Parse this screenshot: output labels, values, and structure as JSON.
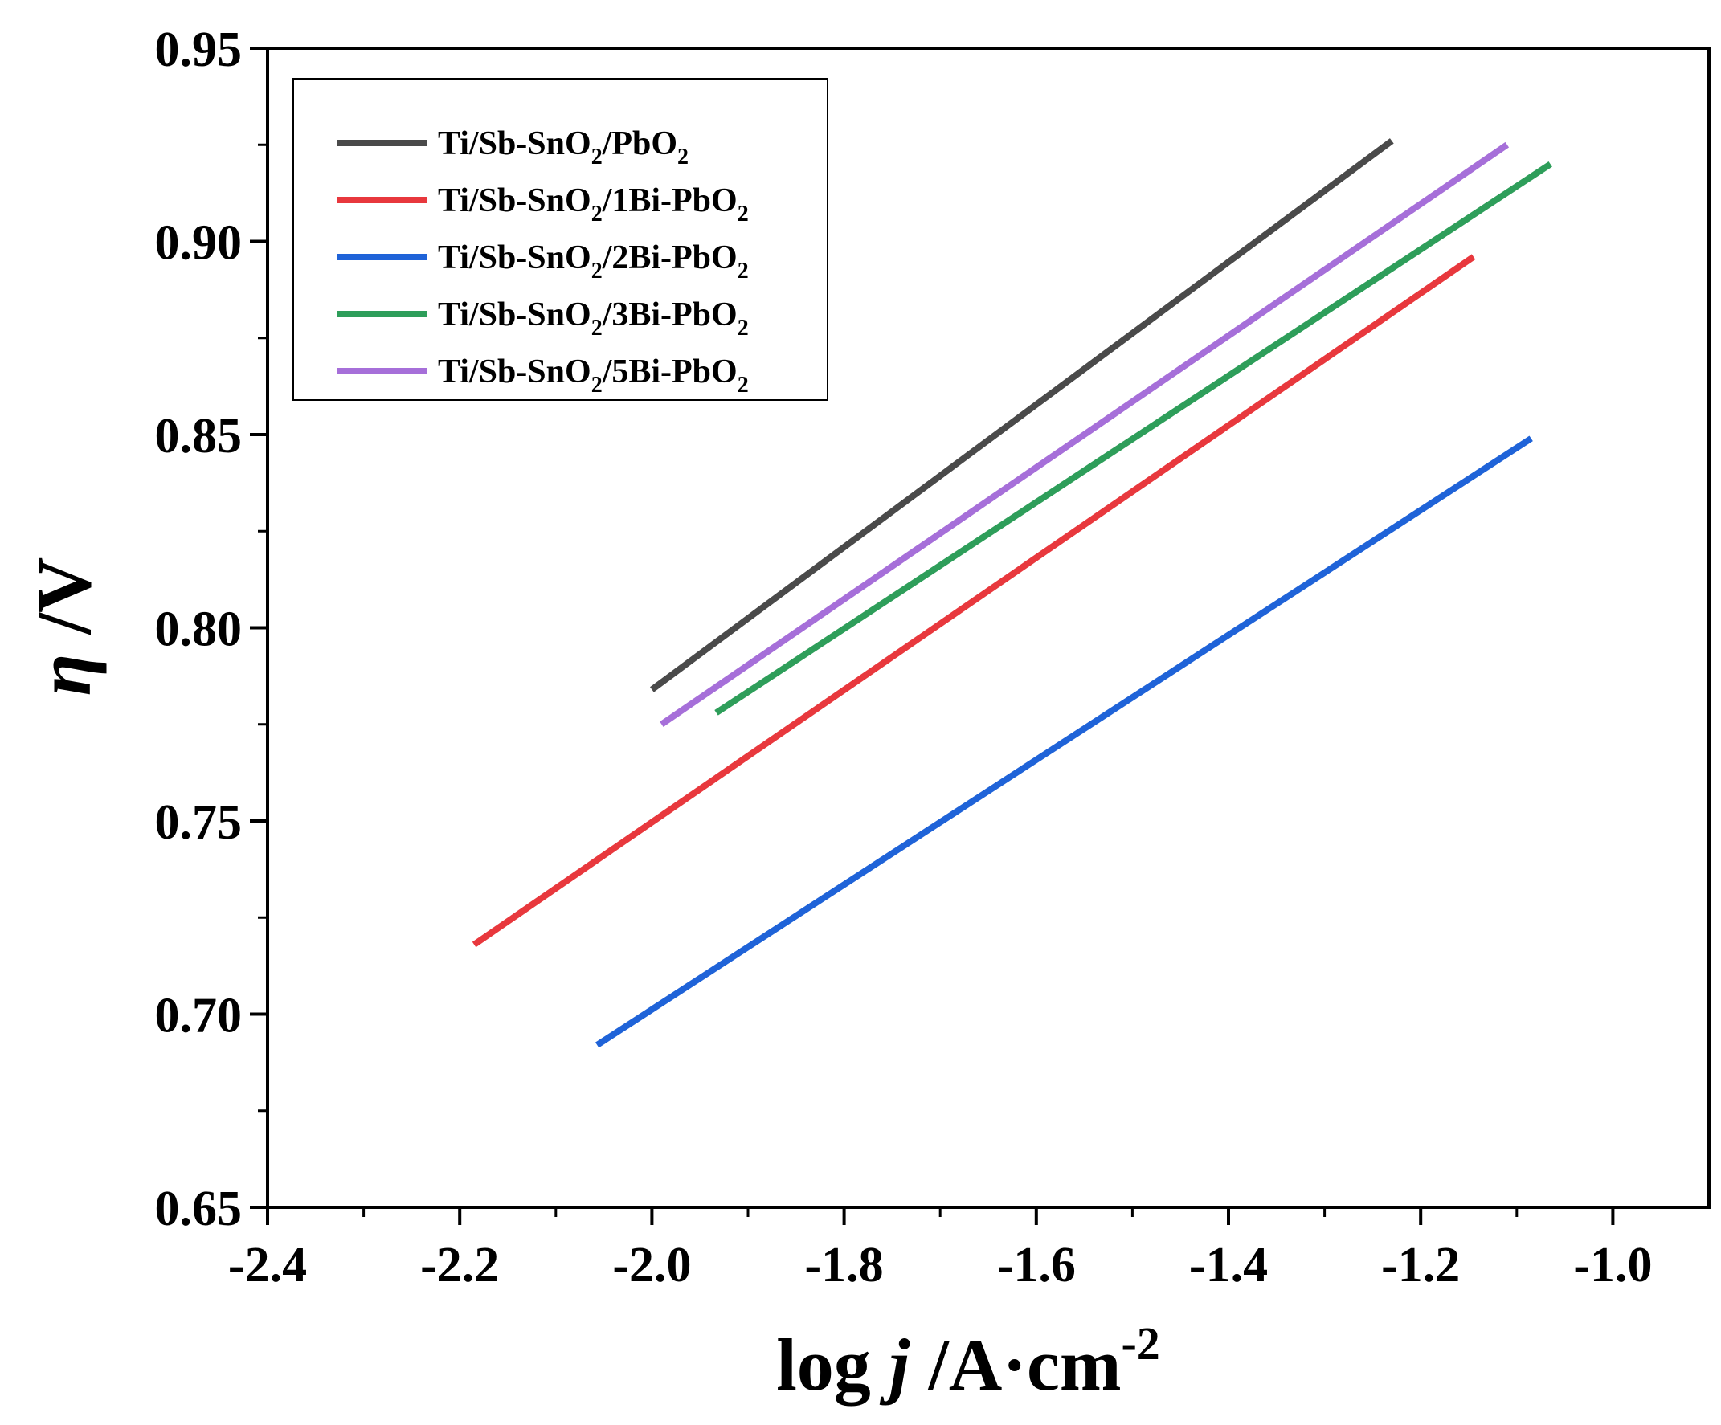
{
  "chart_data": {
    "type": "line",
    "title": "",
    "xlabel": {
      "prefix": "log ",
      "var": "j",
      "unit": " /A·cm",
      "sup": "-2"
    },
    "ylabel": {
      "var": "η",
      "unit": " /V"
    },
    "xlim": [
      -2.4,
      -0.9
    ],
    "ylim": [
      0.65,
      0.95
    ],
    "xticks": [
      "-2.4",
      "-2.2",
      "-2.0",
      "-1.8",
      "-1.6",
      "-1.4",
      "-1.2",
      "-1.0"
    ],
    "xtick_values": [
      -2.4,
      -2.2,
      -2.0,
      -1.8,
      -1.6,
      -1.4,
      -1.2,
      -1.0
    ],
    "xminor_values": [
      -2.3,
      -2.1,
      -1.9,
      -1.7,
      -1.5,
      -1.3,
      -1.1
    ],
    "yticks": [
      "0.65",
      "0.70",
      "0.75",
      "0.80",
      "0.85",
      "0.90",
      "0.95"
    ],
    "ytick_values": [
      0.65,
      0.7,
      0.75,
      0.8,
      0.85,
      0.9,
      0.95
    ],
    "yminor_values": [
      0.675,
      0.725,
      0.775,
      0.825,
      0.875,
      0.925
    ],
    "grid": false,
    "legend_position": "top-left",
    "series": [
      {
        "name": "Ti/Sb-SnO2/PbO2",
        "label_main": "Ti/Sb-SnO",
        "label_sub": "2",
        "label_rest": "/PbO",
        "label_sub2": "2",
        "color": "#4a4a4a",
        "x": [
          -2.0,
          -1.23
        ],
        "y": [
          0.784,
          0.926
        ]
      },
      {
        "name": "Ti/Sb-SnO2/1Bi-PbO2",
        "label_main": "Ti/Sb-SnO",
        "label_sub": "2",
        "label_rest": "/1Bi-PbO",
        "label_sub2": "2",
        "color": "#e8383d",
        "x": [
          -2.185,
          -1.145
        ],
        "y": [
          0.718,
          0.896
        ]
      },
      {
        "name": "Ti/Sb-SnO2/2Bi-PbO2",
        "label_main": "Ti/Sb-SnO",
        "label_sub": "2",
        "label_rest": "/2Bi-PbO",
        "label_sub2": "2",
        "color": "#1f63d8",
        "x": [
          -2.057,
          -1.085
        ],
        "y": [
          0.692,
          0.849
        ]
      },
      {
        "name": "Ti/Sb-SnO2/3Bi-PbO2",
        "label_main": "Ti/Sb-SnO",
        "label_sub": "2",
        "label_rest": "/3Bi-PbO",
        "label_sub2": "2",
        "color": "#2e9e5a",
        "x": [
          -1.933,
          -1.065
        ],
        "y": [
          0.778,
          0.92
        ]
      },
      {
        "name": "Ti/Sb-SnO2/5Bi-PbO2",
        "label_main": "Ti/Sb-SnO",
        "label_sub": "2",
        "label_rest": "/5Bi-PbO",
        "label_sub2": "2",
        "color": "#a66fd9",
        "x": [
          -1.99,
          -1.11
        ],
        "y": [
          0.775,
          0.925
        ]
      }
    ]
  }
}
